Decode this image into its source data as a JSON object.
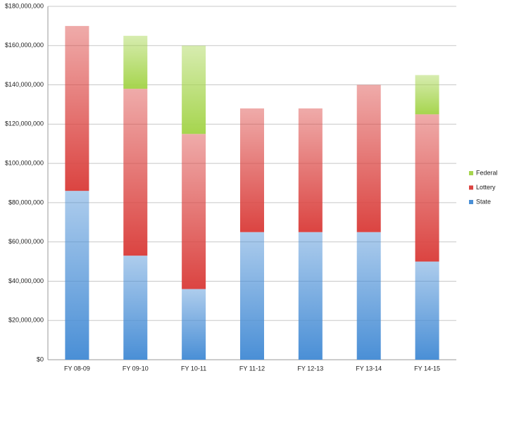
{
  "chart_data": {
    "type": "stacked_bar",
    "categories": [
      "FY 08-09",
      "FY 09-10",
      "FY 10-11",
      "FY 11-12",
      "FY 12-13",
      "FY 13-14",
      "FY 14-15"
    ],
    "series": [
      {
        "name": "State",
        "color": "#4a8fd6",
        "values": [
          86000000,
          53000000,
          36000000,
          65000000,
          65000000,
          65000000,
          50000000
        ]
      },
      {
        "name": "Lottery",
        "color": "#db4441",
        "values": [
          84000000,
          85000000,
          79000000,
          63000000,
          63000000,
          75000000,
          75000000
        ]
      },
      {
        "name": "Federal",
        "color": "#a6d54e",
        "values": [
          0,
          27000000,
          45000000,
          0,
          0,
          0,
          20000000
        ]
      }
    ],
    "ylim": [
      0,
      180000000
    ],
    "yticks": [
      {
        "value": 0,
        "label": "$0"
      },
      {
        "value": 20000000,
        "label": "$20,000,000"
      },
      {
        "value": 40000000,
        "label": "$40,000,000"
      },
      {
        "value": 60000000,
        "label": "$60,000,000"
      },
      {
        "value": 80000000,
        "label": "$80,000,000"
      },
      {
        "value": 100000000,
        "label": "$100,000,000"
      },
      {
        "value": 120000000,
        "label": "$120,000,000"
      },
      {
        "value": 140000000,
        "label": "$140,000,000"
      },
      {
        "value": 160000000,
        "label": "$160,000,000"
      },
      {
        "value": 180000000,
        "label": "$180,000,000"
      }
    ],
    "grid": true,
    "legend": "right"
  }
}
